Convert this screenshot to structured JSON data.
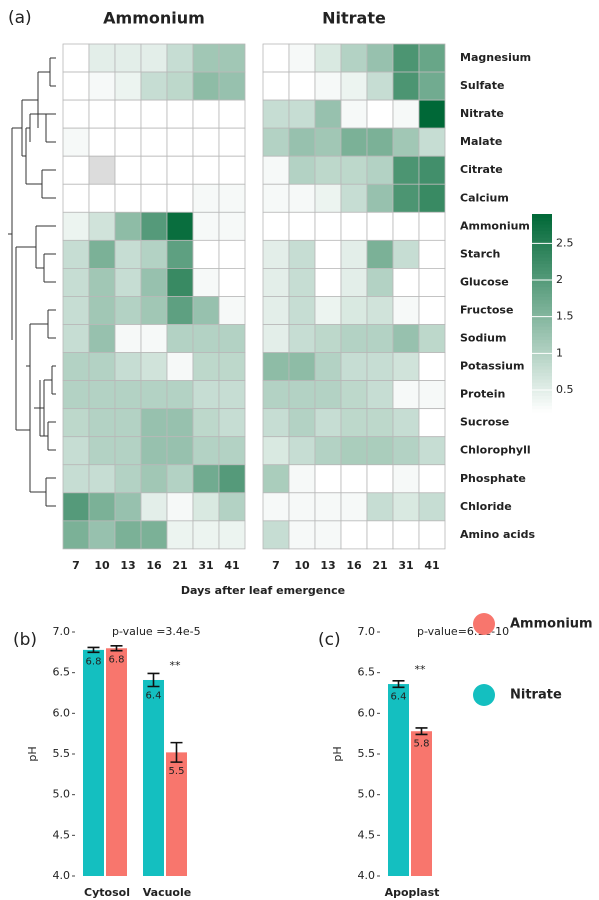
{
  "chart_data": [
    {
      "type": "heatmap",
      "panel_label": "(a)",
      "rows": [
        "Magnesium",
        "Sulfate",
        "Nitrate",
        "Malate",
        "Citrate",
        "Calcium",
        "Ammonium",
        "Starch",
        "Glucose",
        "Fructose",
        "Sodium",
        "Potassium",
        "Protein",
        "Sucrose",
        "Chlorophyll",
        "Phosphate",
        "Chloride",
        "Amino acids"
      ],
      "categories": [
        "7",
        "10",
        "13",
        "16",
        "21",
        "31",
        "41"
      ],
      "xlabel": "Days after leaf emergence",
      "colors": [
        "#ffffff",
        "#006837"
      ],
      "missing_color": "#dcdcdc",
      "zlim": [
        0.2,
        2.9
      ],
      "zticks": [
        0.5,
        1,
        1.5,
        2,
        2.5
      ],
      "panels": [
        {
          "title": "Ammonium",
          "values": [
            [
              0,
              0.5,
              0.5,
              0.5,
              0.8,
              1.2,
              1.2
            ],
            [
              0,
              0.3,
              0.4,
              0.8,
              0.9,
              1.4,
              1.3
            ],
            [
              0,
              0,
              0,
              0,
              0,
              0,
              0
            ],
            [
              0.3,
              0,
              0,
              0,
              0,
              0,
              0
            ],
            [
              0,
              null,
              0,
              0,
              0,
              0,
              0
            ],
            [
              0,
              0,
              0,
              0,
              0,
              0.3,
              0.3
            ],
            [
              0.4,
              0.7,
              1.4,
              2.0,
              2.8,
              0.3,
              0.3
            ],
            [
              0.8,
              1.6,
              0.8,
              1.0,
              1.9,
              0,
              0
            ],
            [
              0.8,
              1.2,
              0.8,
              1.3,
              2.3,
              0.3,
              0
            ],
            [
              0.8,
              1.2,
              1.0,
              1.2,
              1.9,
              1.3,
              0.3
            ],
            [
              0.8,
              1.3,
              0.3,
              0.3,
              1.0,
              1.0,
              1.0
            ],
            [
              1.0,
              1.0,
              0.8,
              0.7,
              0.3,
              0.9,
              0.9
            ],
            [
              1.0,
              1.0,
              1.0,
              1.0,
              1.0,
              0.8,
              0.8
            ],
            [
              0.9,
              1.0,
              1.0,
              1.3,
              1.3,
              0.9,
              0.8
            ],
            [
              0.8,
              1.0,
              1.0,
              1.3,
              1.3,
              1.0,
              1.0
            ],
            [
              0.8,
              0.8,
              1.0,
              1.2,
              1.0,
              1.7,
              2.0
            ],
            [
              2.0,
              1.6,
              1.3,
              0.5,
              0.3,
              0.6,
              1.0
            ],
            [
              1.6,
              1.3,
              1.6,
              1.6,
              0.4,
              0.4,
              0.4
            ]
          ]
        },
        {
          "title": "Nitrate",
          "values": [
            [
              0,
              0.3,
              0.6,
              1.0,
              1.3,
              2.1,
              1.8
            ],
            [
              0,
              0,
              0.3,
              0.4,
              0.8,
              2.1,
              1.7
            ],
            [
              0.8,
              0.8,
              1.3,
              0.3,
              0,
              0.3,
              2.9
            ],
            [
              1.0,
              1.3,
              1.2,
              1.6,
              1.6,
              1.2,
              0.8
            ],
            [
              0.3,
              1.0,
              0.9,
              0.9,
              1.0,
              2.1,
              2.2
            ],
            [
              0.3,
              0.3,
              0.4,
              0.8,
              1.3,
              2.1,
              2.3
            ],
            [
              0,
              0,
              0,
              0,
              0,
              0,
              0
            ],
            [
              0.5,
              0.8,
              0,
              0.5,
              1.6,
              0.8,
              0
            ],
            [
              0.5,
              0.8,
              0,
              0.5,
              1.0,
              0,
              0
            ],
            [
              0.5,
              0.8,
              0.4,
              0.6,
              0.7,
              0.3,
              0
            ],
            [
              0.5,
              0.8,
              0.9,
              1.0,
              1.0,
              1.3,
              0.9
            ],
            [
              1.4,
              1.4,
              1.0,
              0.8,
              0.8,
              0.7,
              0
            ],
            [
              1.0,
              1.0,
              1.0,
              0.9,
              0.8,
              0.3,
              0.3
            ],
            [
              0.8,
              1.0,
              0.8,
              0.9,
              0.9,
              0.8,
              0
            ],
            [
              0.6,
              0.8,
              1.0,
              1.1,
              1.1,
              1.0,
              0.8
            ],
            [
              1.1,
              0.3,
              0,
              0,
              0,
              0.3,
              0
            ],
            [
              0.3,
              0.3,
              0.3,
              0.3,
              0.8,
              0.6,
              0.8
            ],
            [
              0.8,
              0.3,
              0.3,
              0,
              0,
              0,
              0
            ]
          ]
        }
      ]
    },
    {
      "type": "bar",
      "panel_label": "(b)",
      "ylabel": "pH",
      "annotation": "p-value =3.4e-5",
      "significance": [
        "",
        "**"
      ],
      "categories": [
        "Cytosol",
        "Vacuole"
      ],
      "ylim": [
        4,
        7
      ],
      "yticks": [
        {
          "value": 4,
          "label": "4.0"
        },
        {
          "value": 4.5,
          "label": "4.5"
        },
        {
          "value": 5,
          "label": "5.0"
        },
        {
          "value": 5.5,
          "label": "5.5"
        },
        {
          "value": 6,
          "label": "6.0"
        },
        {
          "value": 6.5,
          "label": "6.5"
        },
        {
          "value": 7,
          "label": "7.0"
        }
      ],
      "series": [
        {
          "name": "Nitrate",
          "color": "#14bfc0",
          "values": [
            6.78,
            6.41
          ],
          "value_labels": [
            "6.8",
            "6.4"
          ],
          "errors": [
            0.03,
            0.08
          ]
        },
        {
          "name": "Ammonium",
          "color": "#f8766d",
          "values": [
            6.8,
            5.52
          ],
          "value_labels": [
            "6.8",
            "5.5"
          ],
          "errors": [
            0.03,
            0.12
          ]
        }
      ]
    },
    {
      "type": "bar",
      "panel_label": "(c)",
      "ylabel": "pH",
      "annotation": "p-value=6.1e-10",
      "significance": [
        "**"
      ],
      "categories": [
        "Apoplast"
      ],
      "ylim": [
        4,
        7
      ],
      "yticks": [
        {
          "value": 4,
          "label": "4.0"
        },
        {
          "value": 4.5,
          "label": "4.5"
        },
        {
          "value": 5,
          "label": "5.0"
        },
        {
          "value": 5.5,
          "label": "5.5"
        },
        {
          "value": 6,
          "label": "6.0"
        },
        {
          "value": 6.5,
          "label": "6.5"
        },
        {
          "value": 7,
          "label": "7.0"
        }
      ],
      "series": [
        {
          "name": "Nitrate",
          "color": "#14bfc0",
          "values": [
            6.36
          ],
          "value_labels": [
            "6.4"
          ],
          "errors": [
            0.04
          ]
        },
        {
          "name": "Ammonium",
          "color": "#f8766d",
          "values": [
            5.78
          ],
          "value_labels": [
            "5.8"
          ],
          "errors": [
            0.04
          ]
        }
      ]
    }
  ]
}
